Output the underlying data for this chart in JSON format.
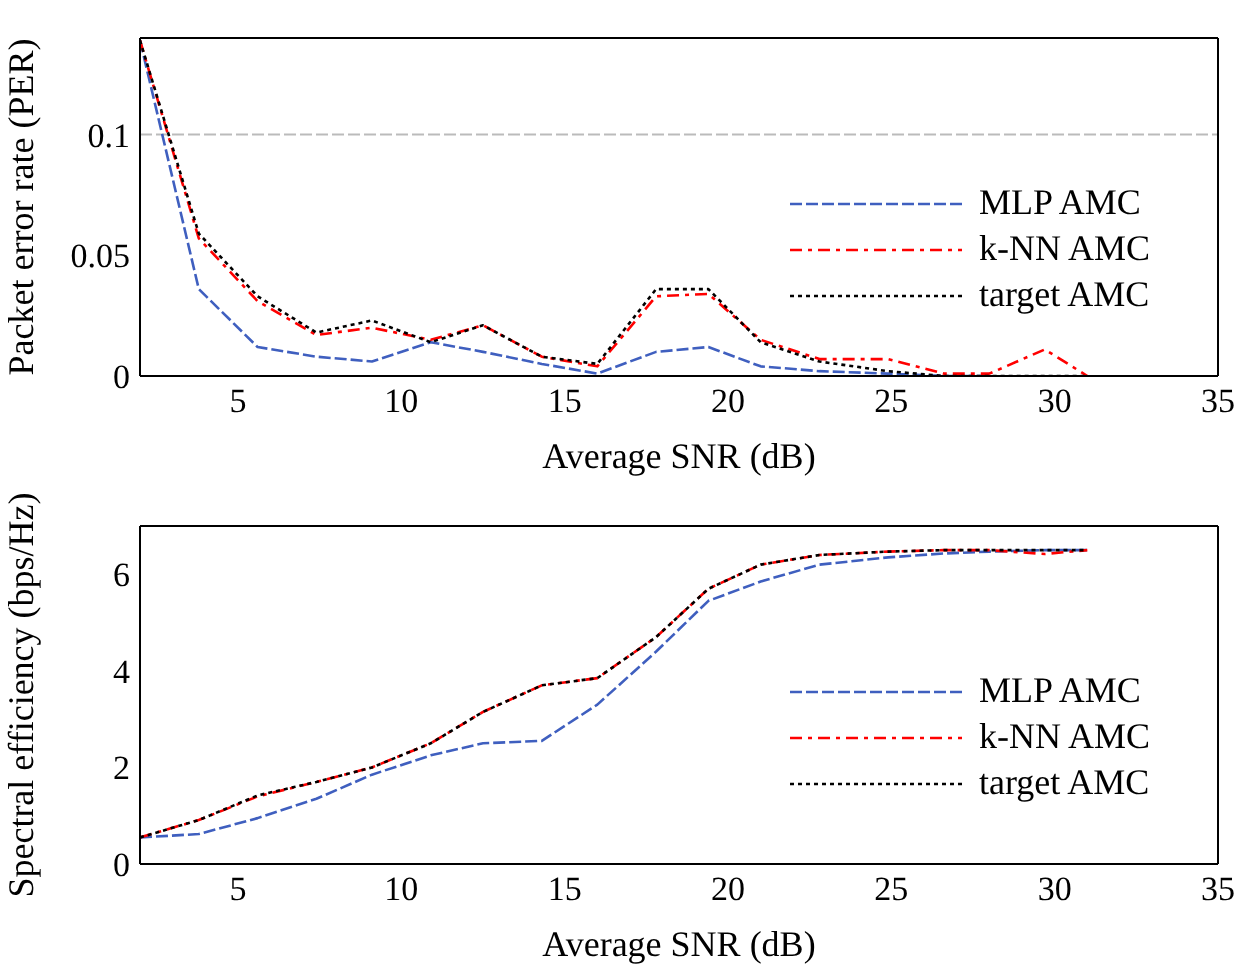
{
  "chart_data": [
    {
      "type": "line",
      "xlabel": "Average SNR (dB)",
      "ylabel": "Packet error rate (PER)",
      "x": [
        2,
        3.8,
        5.6,
        7.4,
        9.1,
        10.9,
        12.5,
        14.3,
        16,
        17.8,
        19.4,
        21,
        22.8,
        24.9,
        26.6,
        28,
        29.7,
        31
      ],
      "xlim": [
        2,
        35
      ],
      "xticks": [
        5,
        10,
        15,
        20,
        25,
        30,
        35
      ],
      "ylim": [
        0,
        0.14
      ],
      "yticks": [
        0,
        0.05,
        0.1
      ],
      "grid": false,
      "legend": "right",
      "marker": "none",
      "ref_lines": [
        {
          "axis": "y",
          "value": 0.1,
          "color": "#bbbbbb",
          "line_style": "dashed"
        }
      ],
      "series": [
        {
          "name": "MLP AMC",
          "color": "#3f5fbf",
          "line_style": "dashed",
          "values": [
            0.139,
            0.036,
            0.012,
            0.008,
            0.006,
            0.014,
            0.01,
            0.005,
            0.001,
            0.01,
            0.012,
            0.004,
            0.002,
            0.001,
            0,
            0,
            null,
            null
          ]
        },
        {
          "name": "k-NN AMC",
          "color": "#ff0000",
          "line_style": "dashdot",
          "values": [
            0.139,
            0.057,
            0.031,
            0.017,
            0.02,
            0.015,
            0.021,
            0.008,
            0.004,
            0.033,
            0.034,
            0.015,
            0.007,
            0.007,
            0.001,
            0.001,
            0.011,
            0
          ]
        },
        {
          "name": "target AMC",
          "color": "#000000",
          "line_style": "dotted",
          "values": [
            0.139,
            0.059,
            0.033,
            0.018,
            0.023,
            0.014,
            0.021,
            0.008,
            0.005,
            0.036,
            0.036,
            0.014,
            0.006,
            0.002,
            0,
            0,
            0,
            0
          ]
        }
      ]
    },
    {
      "type": "line",
      "xlabel": "Average SNR (dB)",
      "ylabel": "Spectral efficiency (bps/Hz)",
      "x": [
        2,
        3.8,
        5.6,
        7.4,
        9.1,
        10.9,
        12.5,
        14.3,
        16,
        17.8,
        19.4,
        21,
        22.8,
        24.9,
        26.6,
        28,
        29.7,
        31
      ],
      "xlim": [
        2,
        35
      ],
      "xticks": [
        5,
        10,
        15,
        20,
        25,
        30,
        35
      ],
      "ylim": [
        0,
        7
      ],
      "yticks": [
        0,
        2,
        4,
        6
      ],
      "grid": false,
      "legend": "right",
      "marker": "none",
      "series": [
        {
          "name": "MLP AMC",
          "color": "#3f5fbf",
          "line_style": "dashed",
          "values": [
            0.55,
            0.62,
            0.95,
            1.35,
            1.85,
            2.25,
            2.5,
            2.55,
            3.3,
            4.4,
            5.45,
            5.85,
            6.2,
            6.35,
            6.43,
            6.47,
            6.5,
            6.5
          ]
        },
        {
          "name": "k-NN AMC",
          "color": "#ff0000",
          "line_style": "dashdot",
          "values": [
            0.55,
            0.91,
            1.4,
            1.7,
            2.0,
            2.5,
            3.15,
            3.7,
            3.85,
            4.7,
            5.7,
            6.2,
            6.4,
            6.47,
            6.5,
            6.5,
            6.42,
            6.5
          ]
        },
        {
          "name": "target AMC",
          "color": "#000000",
          "line_style": "dotted",
          "values": [
            0.55,
            0.91,
            1.42,
            1.7,
            2.0,
            2.5,
            3.15,
            3.7,
            3.85,
            4.7,
            5.7,
            6.2,
            6.4,
            6.47,
            6.5,
            6.5,
            6.5,
            6.5
          ]
        }
      ]
    }
  ]
}
